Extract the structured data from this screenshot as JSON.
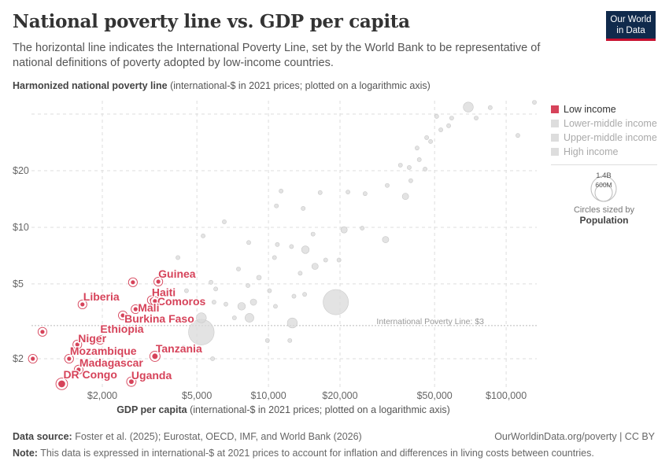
{
  "header": {
    "title": "National poverty line vs. GDP per capita",
    "subtitle": "The horizontal line indicates the International Poverty Line, set by the World Bank to be representative of national definitions of poverty adopted by low-income countries.",
    "logo": "Our World in Data"
  },
  "legend": {
    "items": [
      {
        "label": "Low income",
        "color": "#d6435a",
        "active": true
      },
      {
        "label": "Lower-middle income",
        "color": "#e3e3e3",
        "active": false
      },
      {
        "label": "Upper-middle income",
        "color": "#e3e3e3",
        "active": false
      },
      {
        "label": "High income",
        "color": "#e3e3e3",
        "active": false
      }
    ],
    "size_large": "1.4B",
    "size_small": "600M",
    "size_caption": "Circles sized by",
    "size_variable": "Population"
  },
  "footer": {
    "source_label": "Data source:",
    "source": "Foster et al. (2025); Eurostat, OECD, IMF, and World Bank (2026)",
    "link": "OurWorldinData.org/poverty | CC BY",
    "note_label": "Note:",
    "note": "This data is expressed in international-$ at 2021 prices to account for inflation and differences in living costs between countries."
  },
  "chart_data": {
    "type": "scatter",
    "title": "National poverty line vs. GDP per capita",
    "ylabel_bold": "Harmonized national poverty line",
    "ylabel_rest": "(international-$ in 2021 prices; plotted on a logarithmic axis)",
    "xlabel_bold": "GDP per capita",
    "xlabel_rest": "(international-$ in 2021 prices; plotted on a logarithmic axis)",
    "x_scale": "log",
    "y_scale": "log",
    "xlim": [
      960,
      135000
    ],
    "ylim": [
      1.4,
      48
    ],
    "grid": true,
    "legend_position": "right",
    "x_ticks": [
      {
        "v": 2000,
        "label": "$2,000"
      },
      {
        "v": 5000,
        "label": "$5,000"
      },
      {
        "v": 10000,
        "label": "$10,000"
      },
      {
        "v": 20000,
        "label": "$20,000"
      },
      {
        "v": 50000,
        "label": "$50,000"
      },
      {
        "v": 100000,
        "label": "$100,000"
      }
    ],
    "y_ticks": [
      {
        "v": 2,
        "label": "$2"
      },
      {
        "v": 5,
        "label": "$5"
      },
      {
        "v": 10,
        "label": "$10"
      },
      {
        "v": 20,
        "label": "$20"
      }
    ],
    "reference_line": {
      "value": 3,
      "label": "International Poverty Line: $3"
    },
    "highlighted_series": {
      "name": "Low income",
      "color": "#d6435a",
      "points": [
        {
          "label": "Guinea",
          "x": 3440,
          "y": 5.14,
          "pop": 14
        },
        {
          "label": "",
          "x": 2690,
          "y": 5.1,
          "pop": 10
        },
        {
          "label": "Liberia",
          "x": 1650,
          "y": 3.89,
          "pop": 5
        },
        {
          "label": "Haiti",
          "x": 3230,
          "y": 4.1,
          "pop": 11
        },
        {
          "label": "Comoros",
          "x": 3330,
          "y": 4.05,
          "pop": 1
        },
        {
          "label": "Mali",
          "x": 2760,
          "y": 3.67,
          "pop": 23
        },
        {
          "label": "Burkina Faso",
          "x": 2440,
          "y": 3.4,
          "pop": 23
        },
        {
          "label": "",
          "x": 1120,
          "y": 2.78,
          "pop": 6
        },
        {
          "label": "Ethiopia",
          "x": 1960,
          "y": 2.52,
          "pop": 30
        },
        {
          "label": "Niger",
          "x": 1570,
          "y": 2.38,
          "pop": 26
        },
        {
          "label": "Mozambique",
          "x": 1450,
          "y": 2.0,
          "pop": 33
        },
        {
          "label": "",
          "x": 1020,
          "y": 2.0,
          "pop": 13
        },
        {
          "label": "Madagascar",
          "x": 1590,
          "y": 1.75,
          "pop": 30
        },
        {
          "label": "DR Congo",
          "x": 1350,
          "y": 1.47,
          "pop": 105
        },
        {
          "label": "Uganda",
          "x": 2650,
          "y": 1.51,
          "pop": 48
        },
        {
          "label": "Tanzania",
          "x": 3330,
          "y": 2.06,
          "pop": 67
        }
      ]
    },
    "other_points": [
      [
        69300,
        43.6,
        220
      ],
      [
        85700,
        43.3,
        20
      ],
      [
        131500,
        46.2,
        10
      ],
      [
        59000,
        38.1,
        20
      ],
      [
        51000,
        38.9,
        20
      ],
      [
        74800,
        38.1,
        10
      ],
      [
        53100,
        33.0,
        30
      ],
      [
        46300,
        30.0,
        20
      ],
      [
        57300,
        34.7,
        20
      ],
      [
        112000,
        30.8,
        10
      ],
      [
        42200,
        26.4,
        20
      ],
      [
        48100,
        28.6,
        20
      ],
      [
        43100,
        22.9,
        20
      ],
      [
        35900,
        21.4,
        20
      ],
      [
        39100,
        20.8,
        20
      ],
      [
        45600,
        20.4,
        10
      ],
      [
        39700,
        17.7,
        20
      ],
      [
        31600,
        16.7,
        20
      ],
      [
        37700,
        14.6,
        90
      ],
      [
        25500,
        15.1,
        20
      ],
      [
        21600,
        15.4,
        20
      ],
      [
        16500,
        15.3,
        10
      ],
      [
        11300,
        15.6,
        10
      ],
      [
        10800,
        13.0,
        10
      ],
      [
        14000,
        12.6,
        20
      ],
      [
        6520,
        10.7,
        10
      ],
      [
        5310,
        9.0,
        10
      ],
      [
        8260,
        8.3,
        20
      ],
      [
        20800,
        9.7,
        90
      ],
      [
        31100,
        8.6,
        90
      ],
      [
        24800,
        9.9,
        20
      ],
      [
        15400,
        9.2,
        20
      ],
      [
        12500,
        7.9,
        20
      ],
      [
        10900,
        8.1,
        10
      ],
      [
        4160,
        6.9,
        30
      ],
      [
        10600,
        6.9,
        10
      ],
      [
        17400,
        6.7,
        20
      ],
      [
        19800,
        6.7,
        20
      ],
      [
        15700,
        6.2,
        90
      ],
      [
        14300,
        7.6,
        130
      ],
      [
        13600,
        5.7,
        20
      ],
      [
        7480,
        6.0,
        20
      ],
      [
        9120,
        5.4,
        50
      ],
      [
        5730,
        5.1,
        10
      ],
      [
        6000,
        4.7,
        20
      ],
      [
        8200,
        4.9,
        20
      ],
      [
        10100,
        4.6,
        20
      ],
      [
        12800,
        4.3,
        20
      ],
      [
        14200,
        4.4,
        20
      ],
      [
        4520,
        4.6,
        10
      ],
      [
        5900,
        4.0,
        30
      ],
      [
        7710,
        3.8,
        130
      ],
      [
        8650,
        4.0,
        90
      ],
      [
        10700,
        3.8,
        20
      ],
      [
        6620,
        3.9,
        20
      ],
      [
        4990,
        4.0,
        20
      ],
      [
        8320,
        3.3,
        170
      ],
      [
        7190,
        3.3,
        20
      ],
      [
        19200,
        4.0,
        1410
      ],
      [
        12600,
        3.1,
        220
      ],
      [
        5220,
        3.3,
        220
      ],
      [
        5220,
        2.77,
        1450
      ],
      [
        9900,
        2.5,
        20
      ],
      [
        12300,
        2.5,
        20
      ],
      [
        5820,
        2.0,
        20
      ],
      [
        4390,
        2.3,
        20
      ]
    ]
  }
}
